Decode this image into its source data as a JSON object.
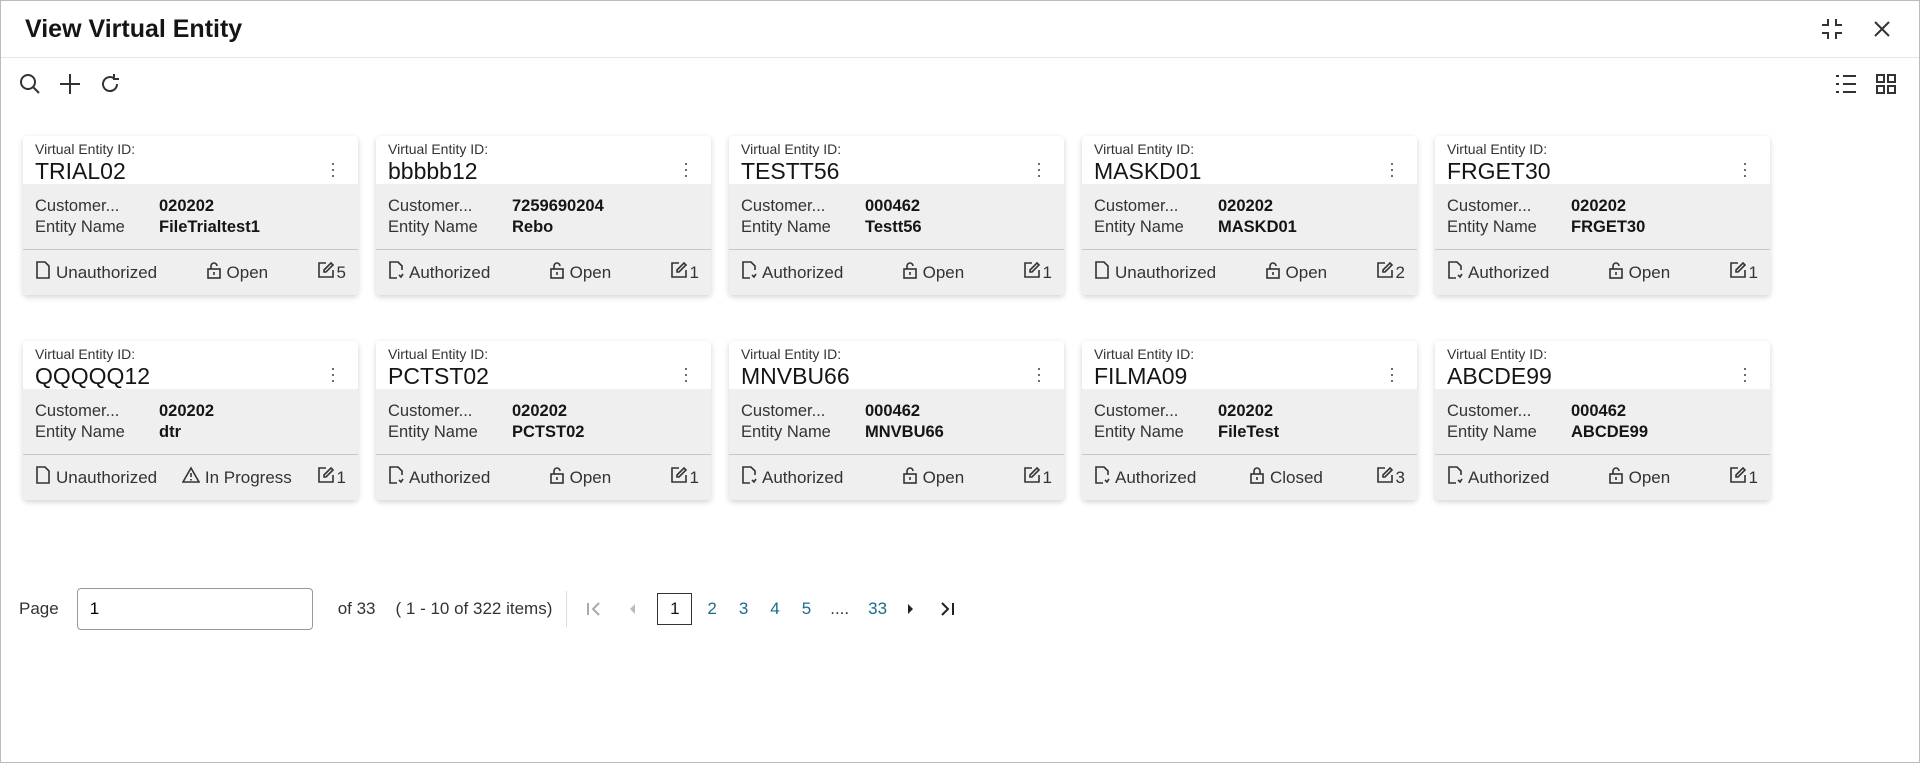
{
  "header": {
    "title": "View Virtual Entity"
  },
  "labels": {
    "id": "Virtual Entity ID:",
    "customer": "Customer...",
    "entity_name": "Entity Name"
  },
  "cards": [
    {
      "id": "TRIAL02",
      "customer": "020202",
      "name": "FileTrialtest1",
      "auth": "Unauthorized",
      "status": "Open",
      "count": "5"
    },
    {
      "id": "bbbbb12",
      "customer": "7259690204",
      "name": "Rebo",
      "auth": "Authorized",
      "status": "Open",
      "count": "1"
    },
    {
      "id": "TESTT56",
      "customer": "000462",
      "name": "Testt56",
      "auth": "Authorized",
      "status": "Open",
      "count": "1"
    },
    {
      "id": "MASKD01",
      "customer": "020202",
      "name": "MASKD01",
      "auth": "Unauthorized",
      "status": "Open",
      "count": "2"
    },
    {
      "id": "FRGET30",
      "customer": "020202",
      "name": "FRGET30",
      "auth": "Authorized",
      "status": "Open",
      "count": "1"
    },
    {
      "id": "QQQQQ12",
      "customer": "020202",
      "name": "dtr",
      "auth": "Unauthorized",
      "status": "In Progress",
      "count": "1"
    },
    {
      "id": "PCTST02",
      "customer": "020202",
      "name": "PCTST02",
      "auth": "Authorized",
      "status": "Open",
      "count": "1"
    },
    {
      "id": "MNVBU66",
      "customer": "000462",
      "name": "MNVBU66",
      "auth": "Authorized",
      "status": "Open",
      "count": "1"
    },
    {
      "id": "FILMA09",
      "customer": "020202",
      "name": "FileTest",
      "auth": "Authorized",
      "status": "Closed",
      "count": "3"
    },
    {
      "id": "ABCDE99",
      "customer": "000462",
      "name": "ABCDE99",
      "auth": "Authorized",
      "status": "Open",
      "count": "1"
    }
  ],
  "pagination": {
    "label": "Page",
    "value": "1",
    "of": "of 33",
    "items": "( 1 - 10 of 322 items)",
    "current": "1",
    "pages": [
      "2",
      "3",
      "4",
      "5"
    ],
    "ellipsis": "....",
    "last": "33"
  }
}
